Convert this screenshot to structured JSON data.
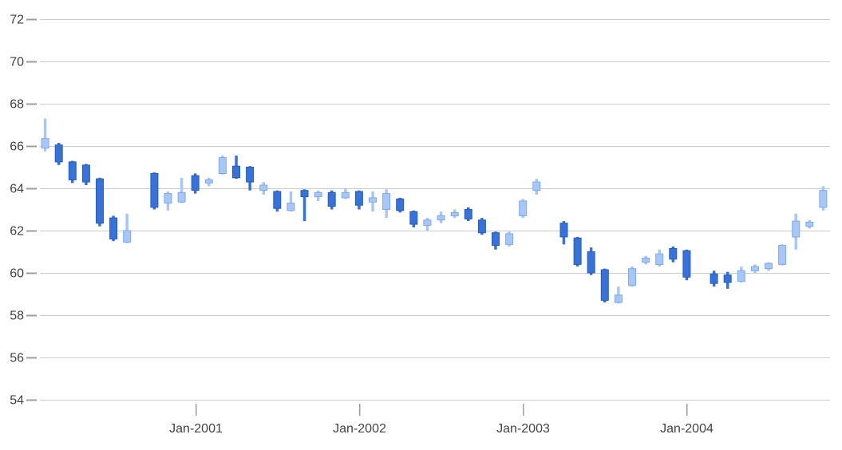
{
  "chart_data": {
    "type": "candlestick",
    "title": "",
    "xlabel": "",
    "ylabel": "",
    "legend_position": "none",
    "grid": true,
    "y_axis": {
      "min": 54,
      "max": 72,
      "step": 2,
      "ticks": [
        54,
        56,
        58,
        60,
        62,
        64,
        66,
        68,
        70,
        72
      ]
    },
    "x_axis": {
      "visible_tick_labels": [
        "Jan-2001",
        "Jan-2002",
        "Jan-2003",
        "Jan-2004"
      ]
    },
    "colors": {
      "rising_fill": "#A7C7F8",
      "rising_stroke": "#7EA9EF",
      "falling_fill": "#3672DB",
      "falling_stroke": "#2A5CB8",
      "gridline": "#CCCCCC",
      "tick": "#9E9E9E",
      "axis_label": "#424242",
      "background": "#FFFFFF"
    },
    "candles": [
      {
        "month": "Feb-2000",
        "o": 65.9,
        "h": 67.3,
        "l": 65.75,
        "c": 66.35
      },
      {
        "month": "Mar-2000",
        "o": 66.05,
        "h": 66.15,
        "l": 65.1,
        "c": 65.25
      },
      {
        "month": "Apr-2000",
        "o": 65.25,
        "h": 65.3,
        "l": 64.25,
        "c": 64.4
      },
      {
        "month": "May-2000",
        "o": 65.1,
        "h": 65.15,
        "l": 64.15,
        "c": 64.3
      },
      {
        "month": "Jun-2000",
        "o": 64.45,
        "h": 64.5,
        "l": 62.2,
        "c": 62.35
      },
      {
        "month": "Jul-2000",
        "o": 62.6,
        "h": 62.7,
        "l": 61.5,
        "c": 61.6
      },
      {
        "month": "Aug-2000",
        "o": 61.45,
        "h": 62.8,
        "l": 61.4,
        "c": 62.0
      },
      {
        "month": "Sep-2000",
        "o": null,
        "h": null,
        "l": null,
        "c": null
      },
      {
        "month": "Oct-2000",
        "o": 64.7,
        "h": 64.75,
        "l": 63.0,
        "c": 63.1
      },
      {
        "month": "Nov-2000",
        "o": 63.3,
        "h": 63.85,
        "l": 62.95,
        "c": 63.75
      },
      {
        "month": "Dec-2000",
        "o": 63.35,
        "h": 64.5,
        "l": 63.3,
        "c": 63.8
      },
      {
        "month": "Jan-2001",
        "o": 64.6,
        "h": 64.7,
        "l": 63.75,
        "c": 63.9
      },
      {
        "month": "Feb-2001",
        "o": 64.25,
        "h": 64.5,
        "l": 64.1,
        "c": 64.4
      },
      {
        "month": "Mar-2001",
        "o": 64.7,
        "h": 65.55,
        "l": 64.65,
        "c": 65.45
      },
      {
        "month": "Apr-2001",
        "o": 65.05,
        "h": 65.55,
        "l": 64.45,
        "c": 64.5
      },
      {
        "month": "May-2001",
        "o": 65.0,
        "h": 65.05,
        "l": 63.9,
        "c": 64.3
      },
      {
        "month": "Jun-2001",
        "o": 63.9,
        "h": 64.3,
        "l": 63.7,
        "c": 64.15
      },
      {
        "month": "Jul-2001",
        "o": 63.85,
        "h": 63.9,
        "l": 62.9,
        "c": 63.05
      },
      {
        "month": "Aug-2001",
        "o": 62.95,
        "h": 63.85,
        "l": 62.9,
        "c": 63.3
      },
      {
        "month": "Sep-2001",
        "o": 63.9,
        "h": 63.95,
        "l": 62.45,
        "c": 63.6
      },
      {
        "month": "Oct-2001",
        "o": 63.6,
        "h": 63.9,
        "l": 63.4,
        "c": 63.8
      },
      {
        "month": "Nov-2001",
        "o": 63.8,
        "h": 63.9,
        "l": 63.0,
        "c": 63.15
      },
      {
        "month": "Dec-2001",
        "o": 63.55,
        "h": 64.0,
        "l": 63.5,
        "c": 63.8
      },
      {
        "month": "Jan-2002",
        "o": 63.85,
        "h": 63.9,
        "l": 63.0,
        "c": 63.2
      },
      {
        "month": "Feb-2002",
        "o": 63.35,
        "h": 63.85,
        "l": 62.9,
        "c": 63.55
      },
      {
        "month": "Mar-2002",
        "o": 63.0,
        "h": 63.95,
        "l": 62.6,
        "c": 63.75
      },
      {
        "month": "Apr-2002",
        "o": 63.5,
        "h": 63.55,
        "l": 62.85,
        "c": 62.95
      },
      {
        "month": "May-2002",
        "o": 62.9,
        "h": 62.95,
        "l": 62.15,
        "c": 62.3
      },
      {
        "month": "Jun-2002",
        "o": 62.25,
        "h": 62.6,
        "l": 62.0,
        "c": 62.5
      },
      {
        "month": "Jul-2002",
        "o": 62.5,
        "h": 62.9,
        "l": 62.35,
        "c": 62.7
      },
      {
        "month": "Aug-2002",
        "o": 62.7,
        "h": 63.0,
        "l": 62.6,
        "c": 62.85
      },
      {
        "month": "Sep-2002",
        "o": 63.0,
        "h": 63.1,
        "l": 62.45,
        "c": 62.55
      },
      {
        "month": "Oct-2002",
        "o": 62.5,
        "h": 62.6,
        "l": 61.8,
        "c": 61.9
      },
      {
        "month": "Nov-2002",
        "o": 61.9,
        "h": 61.95,
        "l": 61.1,
        "c": 61.3
      },
      {
        "month": "Dec-2002",
        "o": 61.35,
        "h": 61.95,
        "l": 61.25,
        "c": 61.85
      },
      {
        "month": "Jan-2003",
        "o": 62.7,
        "h": 63.5,
        "l": 62.6,
        "c": 63.4
      },
      {
        "month": "Feb-2003",
        "o": 63.9,
        "h": 64.45,
        "l": 63.7,
        "c": 64.3
      },
      {
        "month": "Mar-2003",
        "o": null,
        "h": null,
        "l": null,
        "c": null
      },
      {
        "month": "Apr-2003",
        "o": 62.35,
        "h": 62.45,
        "l": 61.35,
        "c": 61.7
      },
      {
        "month": "May-2003",
        "o": 61.65,
        "h": 61.7,
        "l": 60.3,
        "c": 60.4
      },
      {
        "month": "Jun-2003",
        "o": 61.0,
        "h": 61.2,
        "l": 59.9,
        "c": 60.0
      },
      {
        "month": "Jul-2003",
        "o": 60.15,
        "h": 60.2,
        "l": 58.6,
        "c": 58.7
      },
      {
        "month": "Aug-2003",
        "o": 58.6,
        "h": 59.35,
        "l": 58.55,
        "c": 58.95
      },
      {
        "month": "Sep-2003",
        "o": 59.4,
        "h": 60.3,
        "l": 59.35,
        "c": 60.2
      },
      {
        "month": "Oct-2003",
        "o": 60.5,
        "h": 60.8,
        "l": 60.4,
        "c": 60.7
      },
      {
        "month": "Nov-2003",
        "o": 60.4,
        "h": 61.1,
        "l": 60.3,
        "c": 60.9
      },
      {
        "month": "Dec-2003",
        "o": 61.15,
        "h": 61.25,
        "l": 60.5,
        "c": 60.65
      },
      {
        "month": "Jan-2004",
        "o": 61.05,
        "h": 61.1,
        "l": 59.65,
        "c": 59.8
      },
      {
        "month": "Feb-2004",
        "o": null,
        "h": null,
        "l": null,
        "c": null
      },
      {
        "month": "Mar-2004",
        "o": 59.95,
        "h": 60.1,
        "l": 59.35,
        "c": 59.5
      },
      {
        "month": "Apr-2004",
        "o": 59.9,
        "h": 60.05,
        "l": 59.25,
        "c": 59.55
      },
      {
        "month": "May-2004",
        "o": 59.6,
        "h": 60.3,
        "l": 59.55,
        "c": 60.1
      },
      {
        "month": "Jun-2004",
        "o": 60.1,
        "h": 60.4,
        "l": 60.0,
        "c": 60.3
      },
      {
        "month": "Jul-2004",
        "o": 60.2,
        "h": 60.5,
        "l": 60.1,
        "c": 60.45
      },
      {
        "month": "Aug-2004",
        "o": 60.4,
        "h": 61.35,
        "l": 60.35,
        "c": 61.3
      },
      {
        "month": "Sep-2004",
        "o": 61.7,
        "h": 62.8,
        "l": 61.1,
        "c": 62.45
      },
      {
        "month": "Oct-2004",
        "o": 62.2,
        "h": 62.5,
        "l": 62.1,
        "c": 62.4
      },
      {
        "month": "Nov-2004",
        "o": 63.1,
        "h": 64.1,
        "l": 62.95,
        "c": 63.9
      }
    ]
  }
}
